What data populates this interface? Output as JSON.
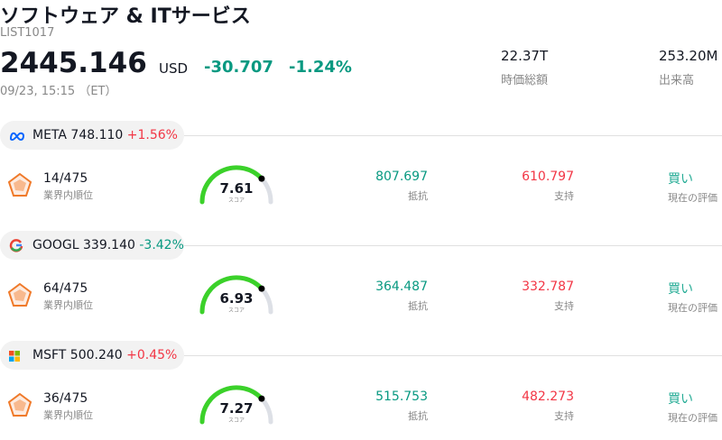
{
  "header": {
    "title": "ソフトウェア & ITサービス",
    "code": "LIST1017",
    "price": "2445.146",
    "currency": "USD",
    "change": "-30.707",
    "change_pct": "-1.24%",
    "timestamp": "09/23, 15:15 （ET）",
    "market_cap": "22.37T",
    "market_cap_label": "時価総額",
    "volume": "253.20M",
    "volume_label": "出来高"
  },
  "stocks": [
    {
      "ticker": "META",
      "price": "748.110",
      "change_pct": "+1.56%",
      "rank": "14/475",
      "rank_label": "業界内順位",
      "score": "7.61",
      "score_label": "スコア",
      "resistance": "807.697",
      "resistance_label": "抵抗",
      "support": "610.797",
      "support_label": "支持",
      "rating": "買い",
      "rating_label": "現在の評価"
    },
    {
      "ticker": "GOOGL",
      "price": "339.140",
      "change_pct": "-3.42%",
      "rank": "64/475",
      "rank_label": "業界内順位",
      "score": "6.93",
      "score_label": "スコア",
      "resistance": "364.487",
      "resistance_label": "抵抗",
      "support": "332.787",
      "support_label": "支持",
      "rating": "買い",
      "rating_label": "現在の評価"
    },
    {
      "ticker": "MSFT",
      "price": "500.240",
      "change_pct": "+0.45%",
      "rank": "36/475",
      "rank_label": "業界内順位",
      "score": "7.27",
      "score_label": "スコア",
      "resistance": "515.753",
      "resistance_label": "抵抗",
      "support": "482.273",
      "support_label": "支持",
      "rating": "買い",
      "rating_label": "現在の評価"
    }
  ]
}
